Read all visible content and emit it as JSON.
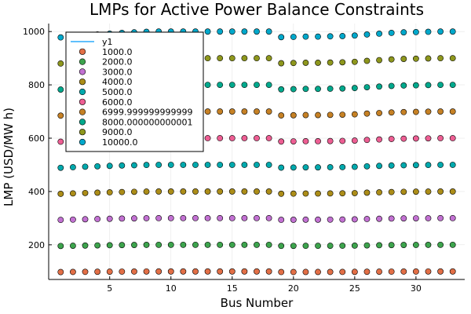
{
  "chart_data": {
    "type": "scatter",
    "title": "LMPs for Active Power Balance Constraints",
    "xlabel": "Bus Number",
    "ylabel": "LMP (USD/MW h)",
    "xlim": [
      0.02,
      33.98
    ],
    "ylim": [
      70,
      1030
    ],
    "xticks": [
      5,
      10,
      15,
      20,
      25,
      30
    ],
    "yticks": [
      200,
      400,
      600,
      800,
      1000
    ],
    "grid": true,
    "legend_position": "top-left",
    "x": [
      1,
      2,
      3,
      4,
      5,
      6,
      7,
      8,
      9,
      10,
      11,
      12,
      13,
      14,
      15,
      16,
      17,
      18,
      19,
      20,
      21,
      22,
      23,
      24,
      25,
      26,
      27,
      28,
      29,
      30,
      31,
      32,
      33
    ],
    "line_series": {
      "name": "y1",
      "color": "#009af9"
    },
    "series": [
      {
        "name": "1000.0",
        "color": "#e26f46",
        "base": 1000
      },
      {
        "name": "2000.0",
        "color": "#3da44d",
        "base": 2000
      },
      {
        "name": "3000.0",
        "color": "#c271d2",
        "base": 3000
      },
      {
        "name": "4000.0",
        "color": "#ac8d18",
        "base": 4000
      },
      {
        "name": "5000.0",
        "color": "#00a9ad",
        "base": 5000
      },
      {
        "name": "6000.0",
        "color": "#ed5e93",
        "base": 6000
      },
      {
        "name": "6999.999999999999",
        "color": "#c68125",
        "base": 7000
      },
      {
        "name": "8000.000000000001",
        "color": "#00a98d",
        "base": 8000
      },
      {
        "name": "9000.0",
        "color": "#8e971d",
        "base": 9000
      },
      {
        "name": "10000.0",
        "color": "#00a8cb",
        "base": 10000
      }
    ],
    "factors": [
      0.0978,
      0.0982,
      0.0986,
      0.0989,
      0.0992,
      0.0995,
      0.0997,
      0.0999,
      0.1,
      0.1,
      0.1,
      0.1,
      0.1,
      0.1,
      0.1,
      0.1,
      0.1,
      0.1,
      0.0979,
      0.098,
      0.0981,
      0.0981,
      0.0982,
      0.0983,
      0.0985,
      0.0989,
      0.0992,
      0.0995,
      0.0997,
      0.0998,
      0.0999,
      0.1,
      0.1
    ]
  }
}
